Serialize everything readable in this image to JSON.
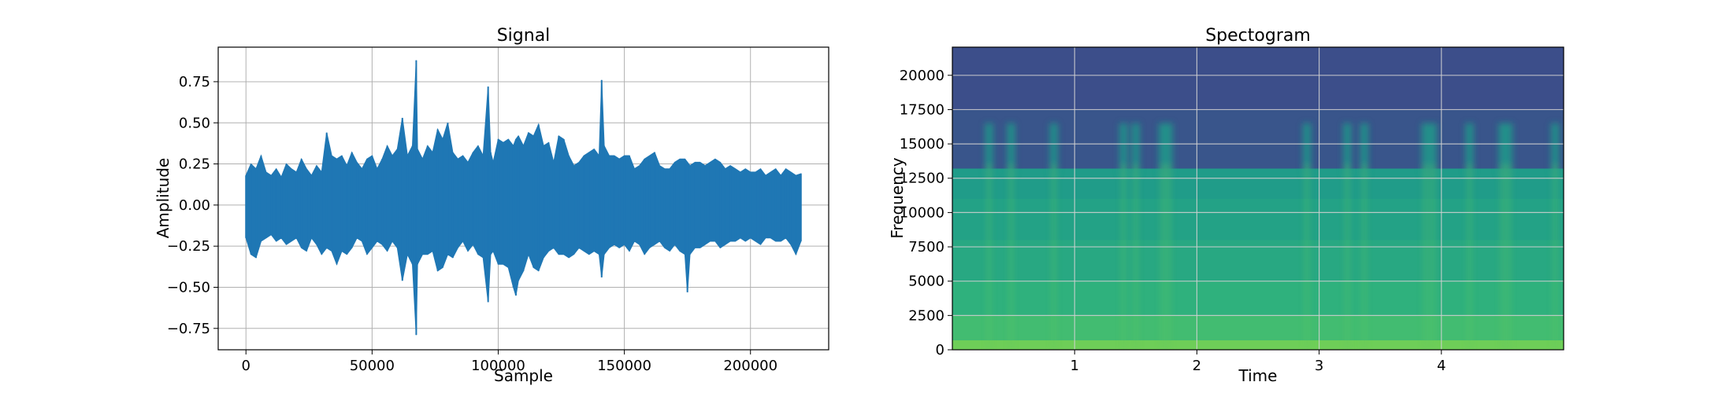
{
  "chart_data": [
    {
      "type": "line",
      "title": "Signal",
      "xlabel": "Sample",
      "ylabel": "Amplitude",
      "xlim": [
        -11000,
        231000
      ],
      "ylim": [
        -0.88,
        0.96
      ],
      "xticks": [
        0,
        50000,
        100000,
        150000,
        200000
      ],
      "xtick_labels": [
        "0",
        "50000",
        "100000",
        "150000",
        "200000"
      ],
      "yticks": [
        -0.75,
        -0.5,
        -0.25,
        0.0,
        0.25,
        0.5,
        0.75
      ],
      "ytick_labels": [
        "−0.75",
        "−0.50",
        "−0.25",
        "0.00",
        "0.25",
        "0.50",
        "0.75"
      ],
      "grid": true,
      "color": "#1f77b4",
      "series": [
        {
          "x": [
            0,
            2000,
            4000,
            6000,
            8000,
            10000,
            12000,
            14000,
            16000,
            18000,
            20000,
            22000,
            24000,
            26000,
            28000,
            30000,
            32000,
            34000,
            36000,
            38000,
            40000,
            42000,
            44000,
            46000,
            48000,
            50000,
            52000,
            54000,
            56000,
            58000,
            60000,
            62000,
            64000,
            66000,
            67500,
            68000,
            70000,
            72000,
            74000,
            76000,
            78000,
            80000,
            82000,
            84000,
            86000,
            88000,
            90000,
            92000,
            94000,
            96000,
            97000,
            98000,
            100000,
            102000,
            104000,
            106000,
            107000,
            108000,
            110000,
            112000,
            114000,
            116000,
            118000,
            120000,
            122000,
            124000,
            126000,
            128000,
            130000,
            132000,
            134000,
            136000,
            138000,
            140000,
            141000,
            142000,
            144000,
            146000,
            148000,
            150000,
            152000,
            154000,
            156000,
            158000,
            160000,
            162000,
            164000,
            166000,
            168000,
            170000,
            172000,
            174000,
            175000,
            176000,
            178000,
            180000,
            182000,
            184000,
            186000,
            188000,
            190000,
            192000,
            194000,
            196000,
            198000,
            200000,
            202000,
            204000,
            206000,
            208000,
            210000,
            212000,
            214000,
            216000,
            218000,
            220000
          ],
          "upper": [
            0.18,
            0.25,
            0.22,
            0.3,
            0.2,
            0.18,
            0.22,
            0.17,
            0.25,
            0.22,
            0.2,
            0.28,
            0.22,
            0.18,
            0.24,
            0.2,
            0.44,
            0.3,
            0.28,
            0.3,
            0.24,
            0.32,
            0.26,
            0.22,
            0.28,
            0.3,
            0.22,
            0.28,
            0.36,
            0.3,
            0.34,
            0.53,
            0.3,
            0.36,
            0.88,
            0.34,
            0.28,
            0.36,
            0.32,
            0.46,
            0.4,
            0.5,
            0.32,
            0.28,
            0.3,
            0.26,
            0.32,
            0.36,
            0.3,
            0.72,
            0.32,
            0.26,
            0.4,
            0.38,
            0.4,
            0.36,
            0.4,
            0.42,
            0.36,
            0.44,
            0.42,
            0.49,
            0.36,
            0.38,
            0.26,
            0.42,
            0.4,
            0.3,
            0.24,
            0.26,
            0.3,
            0.32,
            0.34,
            0.3,
            0.76,
            0.36,
            0.3,
            0.3,
            0.28,
            0.3,
            0.3,
            0.22,
            0.24,
            0.28,
            0.3,
            0.32,
            0.24,
            0.22,
            0.22,
            0.26,
            0.28,
            0.28,
            0.26,
            0.24,
            0.26,
            0.26,
            0.24,
            0.26,
            0.28,
            0.26,
            0.22,
            0.24,
            0.22,
            0.2,
            0.22,
            0.2,
            0.2,
            0.22,
            0.18,
            0.2,
            0.22,
            0.18,
            0.22,
            0.2,
            0.18,
            0.19
          ],
          "lower": [
            -0.2,
            -0.3,
            -0.32,
            -0.22,
            -0.2,
            -0.18,
            -0.22,
            -0.2,
            -0.24,
            -0.22,
            -0.2,
            -0.26,
            -0.28,
            -0.2,
            -0.24,
            -0.3,
            -0.26,
            -0.28,
            -0.36,
            -0.28,
            -0.3,
            -0.26,
            -0.2,
            -0.22,
            -0.3,
            -0.26,
            -0.22,
            -0.24,
            -0.28,
            -0.22,
            -0.26,
            -0.46,
            -0.3,
            -0.36,
            -0.79,
            -0.36,
            -0.3,
            -0.3,
            -0.28,
            -0.4,
            -0.38,
            -0.3,
            -0.32,
            -0.26,
            -0.22,
            -0.28,
            -0.24,
            -0.3,
            -0.32,
            -0.59,
            -0.3,
            -0.28,
            -0.36,
            -0.36,
            -0.38,
            -0.5,
            -0.55,
            -0.46,
            -0.4,
            -0.3,
            -0.38,
            -0.4,
            -0.32,
            -0.28,
            -0.26,
            -0.3,
            -0.3,
            -0.32,
            -0.3,
            -0.26,
            -0.28,
            -0.3,
            -0.28,
            -0.3,
            -0.44,
            -0.3,
            -0.26,
            -0.24,
            -0.26,
            -0.24,
            -0.28,
            -0.22,
            -0.24,
            -0.3,
            -0.26,
            -0.24,
            -0.22,
            -0.26,
            -0.28,
            -0.24,
            -0.28,
            -0.3,
            -0.53,
            -0.3,
            -0.26,
            -0.26,
            -0.24,
            -0.22,
            -0.22,
            -0.26,
            -0.24,
            -0.22,
            -0.22,
            -0.2,
            -0.22,
            -0.2,
            -0.22,
            -0.24,
            -0.2,
            -0.2,
            -0.22,
            -0.22,
            -0.2,
            -0.24,
            -0.3,
            -0.22
          ]
        }
      ]
    },
    {
      "type": "heatmap",
      "title": "Spectogram",
      "xlabel": "Time",
      "ylabel": "Frequency",
      "xlim": [
        0,
        5
      ],
      "ylim": [
        0,
        22050
      ],
      "xticks": [
        1,
        2,
        3,
        4
      ],
      "xtick_labels": [
        "1",
        "2",
        "3",
        "4"
      ],
      "yticks": [
        0,
        2500,
        5000,
        7500,
        10000,
        12500,
        15000,
        17500,
        20000
      ],
      "ytick_labels": [
        "0",
        "2500",
        "5000",
        "7500",
        "10000",
        "12500",
        "15000",
        "17500",
        "20000"
      ],
      "grid": true,
      "colormap": "viridis",
      "cutoff_frequency": 13200,
      "band_levels": [
        {
          "freq": [
            0,
            700
          ],
          "level": 0.88
        },
        {
          "freq": [
            700,
            2500
          ],
          "level": 0.78
        },
        {
          "freq": [
            2500,
            5000
          ],
          "level": 0.72
        },
        {
          "freq": [
            5000,
            8000
          ],
          "level": 0.68
        },
        {
          "freq": [
            8000,
            11000
          ],
          "level": 0.65
        },
        {
          "freq": [
            11000,
            13200
          ],
          "level": 0.62
        },
        {
          "freq": [
            13200,
            17500
          ],
          "level": 0.3
        },
        {
          "freq": [
            17500,
            22050
          ],
          "level": 0.27
        }
      ],
      "bursts": [
        0.3,
        0.48,
        0.83,
        1.4,
        1.5,
        1.72,
        1.77,
        2.9,
        3.23,
        3.37,
        3.87,
        3.93,
        4.23,
        4.5,
        4.55,
        4.93
      ]
    }
  ]
}
